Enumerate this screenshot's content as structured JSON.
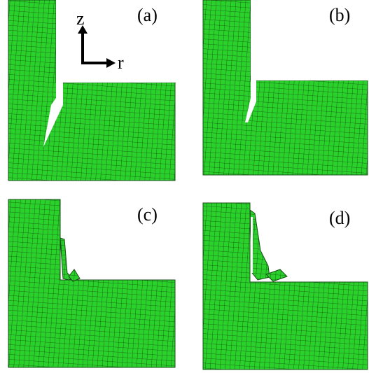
{
  "panels": [
    {
      "label": "(a)"
    },
    {
      "label": "(b)"
    },
    {
      "label": "(c)"
    },
    {
      "label": "(d)"
    }
  ],
  "axes": {
    "vertical": "z",
    "horizontal": "r"
  }
}
